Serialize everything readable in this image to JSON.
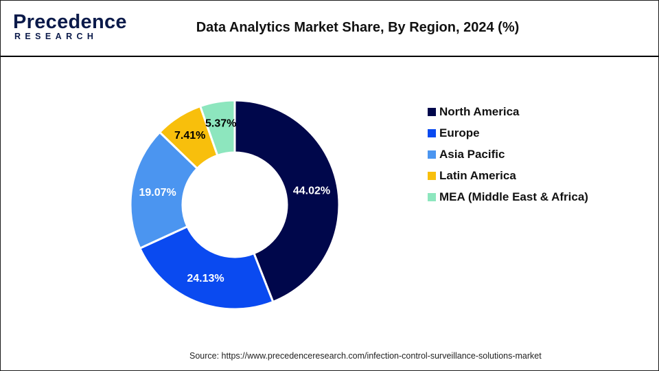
{
  "header": {
    "logo_main": "Precedence",
    "logo_sub": "RESEARCH",
    "title": "Data Analytics Market Share, By Region, 2024 (%)"
  },
  "source": "Source: https://www.precedenceresearch.com/infection-control-surveillance-solutions-market",
  "chart_data": {
    "type": "pie",
    "donut": true,
    "title": "Data Analytics Market Share, By Region, 2024 (%)",
    "legend_position": "right",
    "categories": [
      "North America",
      "Europe",
      "Asia Pacific",
      "Latin America",
      "MEA (Middle East & Africa)"
    ],
    "values": [
      44.02,
      24.13,
      19.07,
      7.41,
      5.37
    ],
    "labels": [
      "44.02%",
      "24.13%",
      "19.07%",
      "7.41%",
      "5.37%"
    ],
    "colors": [
      "#00074b",
      "#0a4af0",
      "#4b95f0",
      "#f8bf0c",
      "#8de6be"
    ],
    "label_colors": [
      "#ffffff",
      "#ffffff",
      "#ffffff",
      "#000000",
      "#000000"
    ]
  }
}
